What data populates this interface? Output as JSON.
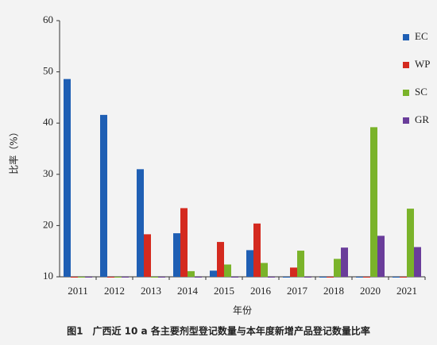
{
  "chart_data": {
    "type": "bar",
    "caption": "图1　广西近 10 a 各主要剂型登记数量与本年度新增产品登记数量比率",
    "x_label": "年份",
    "y_label": "比率（%）",
    "categories": [
      "2011",
      "2012",
      "2013",
      "2014",
      "2015",
      "2016",
      "2017",
      "2018",
      "2020",
      "2021"
    ],
    "series": [
      {
        "name": "EC",
        "color": "#1f5fb4",
        "values": [
          48.6,
          41.6,
          31.0,
          18.5,
          11.2,
          15.2,
          10,
          10,
          10,
          10
        ]
      },
      {
        "name": "WP",
        "color": "#d42a1f",
        "values": [
          10,
          10,
          18.3,
          23.4,
          16.8,
          20.4,
          11.8,
          10,
          10,
          10
        ]
      },
      {
        "name": "SC",
        "color": "#7ab32a",
        "values": [
          10,
          10,
          10,
          11.1,
          12.4,
          12.7,
          15.1,
          13.5,
          39.2,
          23.3
        ]
      },
      {
        "name": "GR",
        "color": "#6a3d9a",
        "values": [
          10,
          10,
          10,
          10,
          10,
          10,
          10,
          15.7,
          18.0,
          15.8
        ]
      }
    ],
    "ylim": [
      10,
      60
    ],
    "yticks": [
      10,
      20,
      30,
      40,
      50,
      60
    ],
    "legend": "right"
  }
}
